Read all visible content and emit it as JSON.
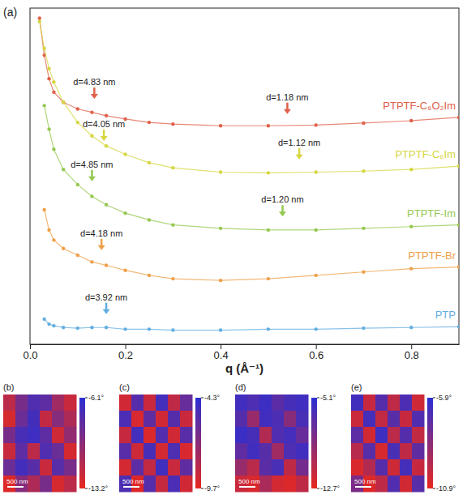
{
  "chart_data": [
    {
      "type": "line",
      "panel_label": "(a)",
      "x_label": "q (Å⁻¹)",
      "x": [
        0.02,
        0.03,
        0.04,
        0.05,
        0.07,
        0.1,
        0.13,
        0.16,
        0.2,
        0.25,
        0.3,
        0.4,
        0.5,
        0.6,
        0.7,
        0.8,
        0.9
      ],
      "xlim": [
        0,
        0.9
      ],
      "xticks": [
        {
          "value": 0,
          "label": "0.0"
        },
        0.2,
        0.4,
        0.6,
        0.8
      ],
      "ylim": [
        0,
        10
      ],
      "tick_labels": "x",
      "marker": "circle",
      "series": [
        {
          "name": "PTPTF-C₆O₂Im",
          "color": "#e0604a",
          "values": [
            9.7,
            8.6,
            7.9,
            7.5,
            7.2,
            7.0,
            6.9,
            6.8,
            6.7,
            6.6,
            6.55,
            6.5,
            6.5,
            6.52,
            6.58,
            6.65,
            6.75
          ]
        },
        {
          "name": "PTPTF-C₆Im",
          "color": "#d6d640",
          "values": [
            9.6,
            8.8,
            8.2,
            7.8,
            7.2,
            6.6,
            6.2,
            5.9,
            5.65,
            5.4,
            5.25,
            5.12,
            5.1,
            5.12,
            5.15,
            5.2,
            5.3
          ]
        },
        {
          "name": "PTPTF-Im",
          "color": "#94c850",
          "values": [
            null,
            7.1,
            6.4,
            5.8,
            5.2,
            4.75,
            4.4,
            4.15,
            3.9,
            3.7,
            3.55,
            3.45,
            3.4,
            3.4,
            3.45,
            3.5,
            3.55
          ]
        },
        {
          "name": "PTPTF-Br",
          "color": "#eea04a",
          "values": [
            null,
            4.0,
            3.4,
            3.1,
            2.85,
            2.65,
            2.45,
            2.35,
            2.2,
            2.05,
            1.95,
            1.9,
            1.95,
            2.05,
            2.15,
            2.25,
            2.3
          ]
        },
        {
          "name": "PTP",
          "color": "#62aee0",
          "values": [
            null,
            0.75,
            0.6,
            0.55,
            0.5,
            0.48,
            0.5,
            0.5,
            0.45,
            0.45,
            0.42,
            0.42,
            0.45,
            0.45,
            0.48,
            0.5,
            0.52
          ]
        }
      ],
      "annotations": [
        {
          "text": "d=4.83 nm",
          "x": 0.135,
          "y": 7.3,
          "color": "#e0604a"
        },
        {
          "text": "d=1.18 nm",
          "x": 0.54,
          "y": 6.85,
          "color": "#e0604a"
        },
        {
          "text": "d=4.05 nm",
          "x": 0.155,
          "y": 6.05,
          "color": "#d6d640"
        },
        {
          "text": "d=1.12 nm",
          "x": 0.565,
          "y": 5.5,
          "color": "#d6d640"
        },
        {
          "text": "d=4.85 nm",
          "x": 0.13,
          "y": 4.85,
          "color": "#94c850"
        },
        {
          "text": "d=1.20 nm",
          "x": 0.53,
          "y": 3.8,
          "color": "#94c850"
        },
        {
          "text": "d=4.18 nm",
          "x": 0.15,
          "y": 2.8,
          "color": "#eea04a"
        },
        {
          "text": "d=3.92 nm",
          "x": 0.16,
          "y": 0.9,
          "color": "#62aee0"
        }
      ]
    },
    {
      "type": "heatmap",
      "panel_label": "(b)",
      "scale_bar": "500 nm",
      "cells": [
        [
          -11.5,
          -9.0,
          -7.5,
          -8.0,
          -10.5,
          -12.0
        ],
        [
          -12.5,
          -8.5,
          -7.0,
          -11.8,
          -9.5,
          -11.0
        ],
        [
          -9.0,
          -7.2,
          -6.8,
          -8.0,
          -12.2,
          -10.0
        ],
        [
          -12.0,
          -8.0,
          -11.5,
          -7.5,
          -8.5,
          -12.5
        ],
        [
          -8.5,
          -7.0,
          -7.8,
          -12.0,
          -7.8,
          -9.0
        ],
        [
          -12.8,
          -9.5,
          -11.0,
          -9.0,
          -12.5,
          -11.5
        ]
      ],
      "colorbar_range": [
        -13.2,
        -6.1
      ],
      "colorbar_ticks": [
        {
          "value": -6.1,
          "label": "-6.1°"
        },
        {
          "value": -13.2,
          "label": "-13.2°"
        }
      ]
    },
    {
      "type": "heatmap",
      "panel_label": "(c)",
      "scale_bar": "500 nm",
      "cells": [
        [
          -9.0,
          -5.5,
          -8.8,
          -5.0,
          -8.5,
          -6.0
        ],
        [
          -5.2,
          -9.2,
          -5.8,
          -9.0,
          -5.5,
          -8.8
        ],
        [
          -8.7,
          -5.0,
          -9.3,
          -5.4,
          -9.0,
          -5.6
        ],
        [
          -5.6,
          -8.9,
          -5.1,
          -9.1,
          -5.3,
          -9.2
        ],
        [
          -9.1,
          -5.7,
          -8.6,
          -4.9,
          -8.8,
          -5.8
        ],
        [
          -5.3,
          -9.4,
          -5.5,
          -8.7,
          -5.2,
          -9.0
        ]
      ],
      "colorbar_range": [
        -9.7,
        -4.3
      ],
      "colorbar_ticks": [
        {
          "value": -4.3,
          "label": "-4.3°"
        },
        {
          "value": -9.7,
          "label": "-9.7°"
        }
      ]
    },
    {
      "type": "heatmap",
      "panel_label": "(d)",
      "scale_bar": "500 nm",
      "cells": [
        [
          -6.0,
          -6.5,
          -5.8,
          -7.0,
          -6.2,
          -5.9
        ],
        [
          -6.8,
          -9.5,
          -6.0,
          -6.4,
          -8.8,
          -6.3
        ],
        [
          -5.7,
          -6.2,
          -10.5,
          -6.6,
          -6.1,
          -7.5
        ],
        [
          -7.2,
          -6.0,
          -6.9,
          -9.8,
          -6.5,
          -6.0
        ],
        [
          -9.5,
          -10.8,
          -7.0,
          -6.3,
          -11.0,
          -8.0
        ],
        [
          -11.5,
          -12.0,
          -10.2,
          -11.8,
          -12.2,
          -11.0
        ]
      ],
      "colorbar_range": [
        -12.7,
        -5.1
      ],
      "colorbar_ticks": [
        {
          "value": -5.1,
          "label": "-5.1°"
        },
        {
          "value": -12.7,
          "label": "-12.7°"
        }
      ]
    },
    {
      "type": "heatmap",
      "panel_label": "(e)",
      "scale_bar": "500 nm",
      "cells": [
        [
          -6.5,
          -10.0,
          -7.0,
          -9.8,
          -6.8,
          -10.2
        ],
        [
          -10.1,
          -6.6,
          -9.9,
          -7.1,
          -10.0,
          -6.9
        ],
        [
          -7.2,
          -10.3,
          -6.4,
          -9.7,
          -7.0,
          -9.9
        ],
        [
          -9.6,
          -7.1,
          -10.4,
          -6.7,
          -9.8,
          -7.3
        ],
        [
          -10.5,
          -9.5,
          -7.0,
          -10.2,
          -6.6,
          -10.0
        ],
        [
          -8.0,
          -10.6,
          -9.8,
          -6.9,
          -10.3,
          -7.1
        ]
      ],
      "colorbar_range": [
        -10.9,
        -5.9
      ],
      "colorbar_ticks": [
        {
          "value": -5.9,
          "label": "-5.9°"
        },
        {
          "value": -10.9,
          "label": "-10.9°"
        }
      ]
    }
  ]
}
